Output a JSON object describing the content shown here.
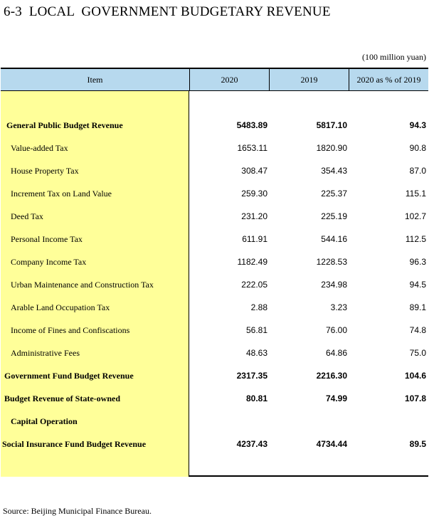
{
  "title": "6-3  LOCAL  GOVERNMENT BUDGETARY REVENUE",
  "unit": "(100 million yuan)",
  "header": {
    "item": "Item",
    "y2020": "2020",
    "y2019": "2019",
    "pct": "2020 as % of 2019"
  },
  "rows": [
    {
      "label": "General Public Budget Revenue",
      "v2020": "5483.89",
      "v2019": "5817.10",
      "pct": "94.3"
    },
    {
      "label": "Value-added Tax",
      "v2020": "1653.11",
      "v2019": "1820.90",
      "pct": "90.8"
    },
    {
      "label": "House Property Tax",
      "v2020": "308.47",
      "v2019": "354.43",
      "pct": "87.0"
    },
    {
      "label": "Increment Tax on Land Value",
      "v2020": "259.30",
      "v2019": "225.37",
      "pct": "115.1"
    },
    {
      "label": "Deed Tax",
      "v2020": "231.20",
      "v2019": "225.19",
      "pct": "102.7"
    },
    {
      "label": "Personal Income Tax",
      "v2020": "611.91",
      "v2019": "544.16",
      "pct": "112.5"
    },
    {
      "label": "Company Income Tax",
      "v2020": "1182.49",
      "v2019": "1228.53",
      "pct": "96.3"
    },
    {
      "label": "Urban Maintenance and Construction Tax",
      "v2020": "222.05",
      "v2019": "234.98",
      "pct": "94.5"
    },
    {
      "label": "Arable Land Occupation Tax",
      "v2020": "2.88",
      "v2019": "3.23",
      "pct": "89.1"
    },
    {
      "label": "Income of Fines and Confiscations",
      "v2020": "56.81",
      "v2019": "76.00",
      "pct": "74.8"
    },
    {
      "label": "Administrative Fees",
      "v2020": "48.63",
      "v2019": "64.86",
      "pct": "75.0"
    },
    {
      "label": "Government Fund Budget Revenue",
      "v2020": "2317.35",
      "v2019": "2216.30",
      "pct": "104.6"
    },
    {
      "label": "Budget Revenue of State-owned",
      "v2020": "80.81",
      "v2019": "74.99",
      "pct": "107.8"
    },
    {
      "label": "Capital Operation",
      "v2020": "",
      "v2019": "",
      "pct": ""
    },
    {
      "label": "Social Insurance Fund Budget Revenue",
      "v2020": "4237.43",
      "v2019": "4734.44",
      "pct": "89.5"
    }
  ],
  "source": "Source: Beijing Municipal Finance Bureau."
}
